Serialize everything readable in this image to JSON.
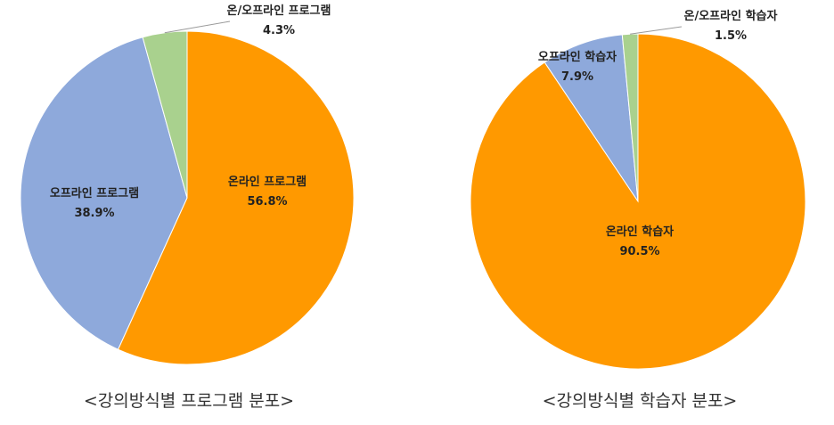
{
  "chart_data": [
    {
      "type": "pie",
      "title": "<강의방식별 프로그램 분포>",
      "slices": [
        {
          "label": "온라인 프로그램",
          "value": 56.8,
          "value_text": "56.8%",
          "color": "#FF9900"
        },
        {
          "label": "오프라인 프로그램",
          "value": 38.9,
          "value_text": "38.9%",
          "color": "#8EA9DB"
        },
        {
          "label": "온/오프라인 프로그램",
          "value": 4.3,
          "value_text": "4.3%",
          "color": "#A9D18E"
        }
      ]
    },
    {
      "type": "pie",
      "title": "<강의방식별 학습자 분포>",
      "slices": [
        {
          "label": "온라인 학습자",
          "value": 90.5,
          "value_text": "90.5%",
          "color": "#FF9900"
        },
        {
          "label": "오프라인 학습자",
          "value": 7.9,
          "value_text": "7.9%",
          "color": "#8EA9DB"
        },
        {
          "label": "온/오프라인 학습자",
          "value": 1.5,
          "value_text": "1.5%",
          "color": "#A9D18E"
        }
      ]
    }
  ]
}
